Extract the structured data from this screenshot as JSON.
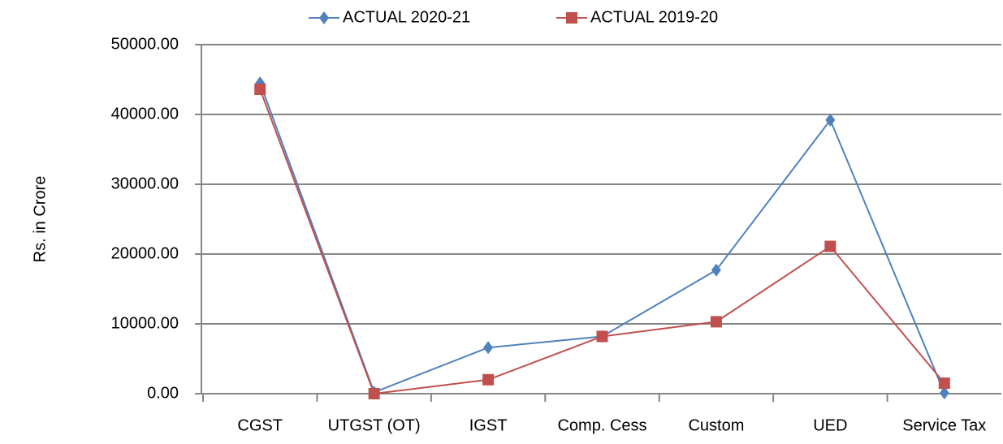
{
  "chart_data": {
    "type": "line",
    "y_label": "Rs. in Crore",
    "categories": [
      "CGST",
      "UTGST (OT)",
      "IGST",
      "Comp. Cess",
      "Custom",
      "UED",
      "Service Tax"
    ],
    "series": [
      {
        "name": "ACTUAL 2020-21",
        "color": "#4f81bd",
        "marker": "diamond",
        "values": [
          44500,
          200,
          6600,
          8200,
          17700,
          39200,
          100
        ]
      },
      {
        "name": "ACTUAL 2019-20",
        "color": "#c0504d",
        "marker": "square",
        "values": [
          43600,
          0,
          2000,
          8200,
          10300,
          21100,
          1500
        ]
      }
    ],
    "ylim": [
      0,
      50000
    ],
    "yticks": [
      {
        "value": 0,
        "label": "0.00"
      },
      {
        "value": 10000,
        "label": "10000.00"
      },
      {
        "value": 20000,
        "label": "20000.00"
      },
      {
        "value": 30000,
        "label": "30000.00"
      },
      {
        "value": 40000,
        "label": "40000.00"
      },
      {
        "value": 50000,
        "label": "50000.00"
      }
    ],
    "grid": true
  }
}
